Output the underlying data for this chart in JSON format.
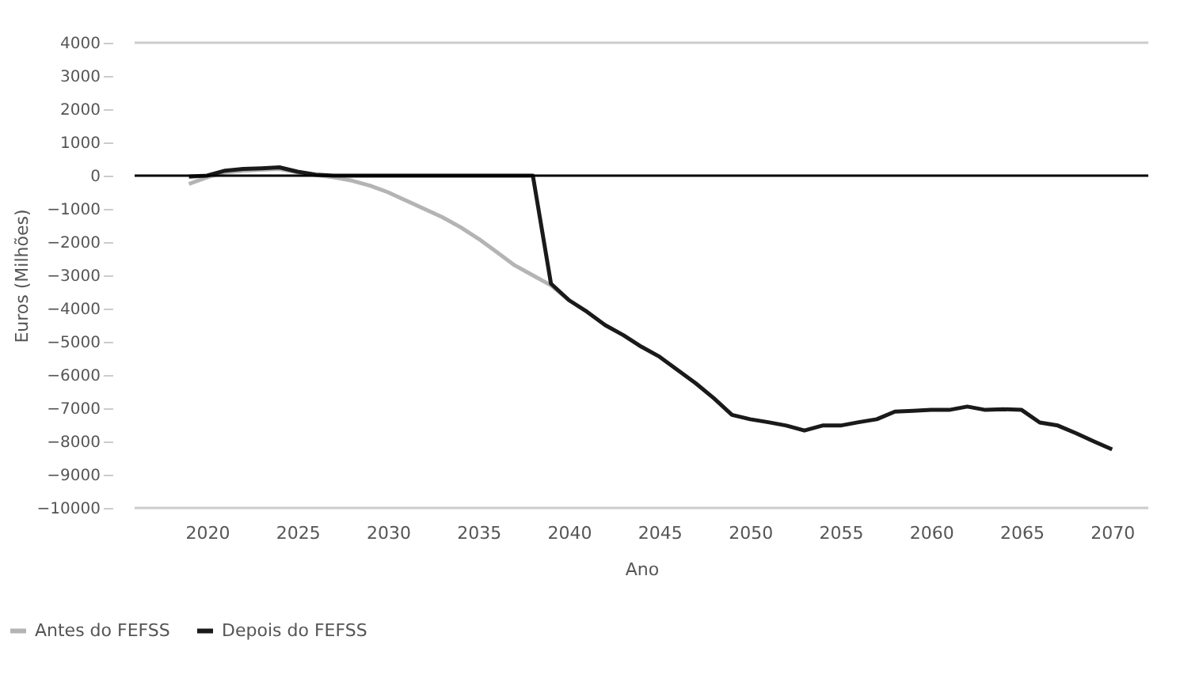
{
  "chart_data": {
    "type": "line",
    "xlabel": "Ano",
    "ylabel": "Euros (Milhões)",
    "xlim": [
      2016,
      2072
    ],
    "xticks": [
      2020,
      2025,
      2030,
      2035,
      2040,
      2045,
      2050,
      2055,
      2060,
      2065,
      2070
    ],
    "ylim": [
      -10000,
      4000
    ],
    "yticks": [
      -10000,
      -9000,
      -8000,
      -7000,
      -6000,
      -5000,
      -4000,
      -3000,
      -2000,
      -1000,
      0,
      1000,
      2000,
      3000,
      4000
    ],
    "grid": false,
    "legend": "bottom left",
    "marker": "none",
    "line_style": "solid",
    "ref_lines": [
      {
        "axis": "y",
        "value": 0,
        "color": "#000000"
      }
    ],
    "series": [
      {
        "name": "Antes do FEFSS",
        "color": "#b4b4b4",
        "x": [
          2019,
          2020,
          2021,
          2022,
          2023,
          2024,
          2025,
          2026,
          2027,
          2028,
          2029,
          2030,
          2031,
          2032,
          2033,
          2034,
          2035,
          2036,
          2037,
          2038,
          2039,
          2040
        ],
        "values": [
          -250,
          -50,
          100,
          150,
          180,
          200,
          100,
          20,
          -50,
          -150,
          -300,
          -500,
          -750,
          -1000,
          -1250,
          -1550,
          -1900,
          -2300,
          -2700,
          -3000,
          -3300,
          -3750
        ]
      },
      {
        "name": "Depois do FEFSS",
        "color": "#1a1a1a",
        "x": [
          2019,
          2020,
          2021,
          2022,
          2023,
          2024,
          2025,
          2026,
          2027,
          2028,
          2029,
          2030,
          2031,
          2032,
          2033,
          2034,
          2035,
          2036,
          2037,
          2038,
          2039,
          2040,
          2041,
          2042,
          2043,
          2044,
          2045,
          2046,
          2047,
          2048,
          2049,
          2050,
          2051,
          2052,
          2053,
          2054,
          2055,
          2056,
          2057,
          2058,
          2059,
          2060,
          2061,
          2062,
          2063,
          2064,
          2065,
          2066,
          2067,
          2068,
          2069,
          2070
        ],
        "values": [
          -30,
          0,
          150,
          200,
          220,
          250,
          120,
          30,
          0,
          0,
          0,
          0,
          0,
          0,
          0,
          0,
          0,
          0,
          0,
          0,
          -3250,
          -3750,
          -4100,
          -4500,
          -4800,
          -5150,
          -5450,
          -5850,
          -6250,
          -6700,
          -7200,
          -7330,
          -7420,
          -7520,
          -7670,
          -7520,
          -7520,
          -7420,
          -7330,
          -7100,
          -7080,
          -7050,
          -7050,
          -6950,
          -7050,
          -7030,
          -7050,
          -7430,
          -7520,
          -7750,
          -8000,
          -8240
        ]
      }
    ]
  }
}
